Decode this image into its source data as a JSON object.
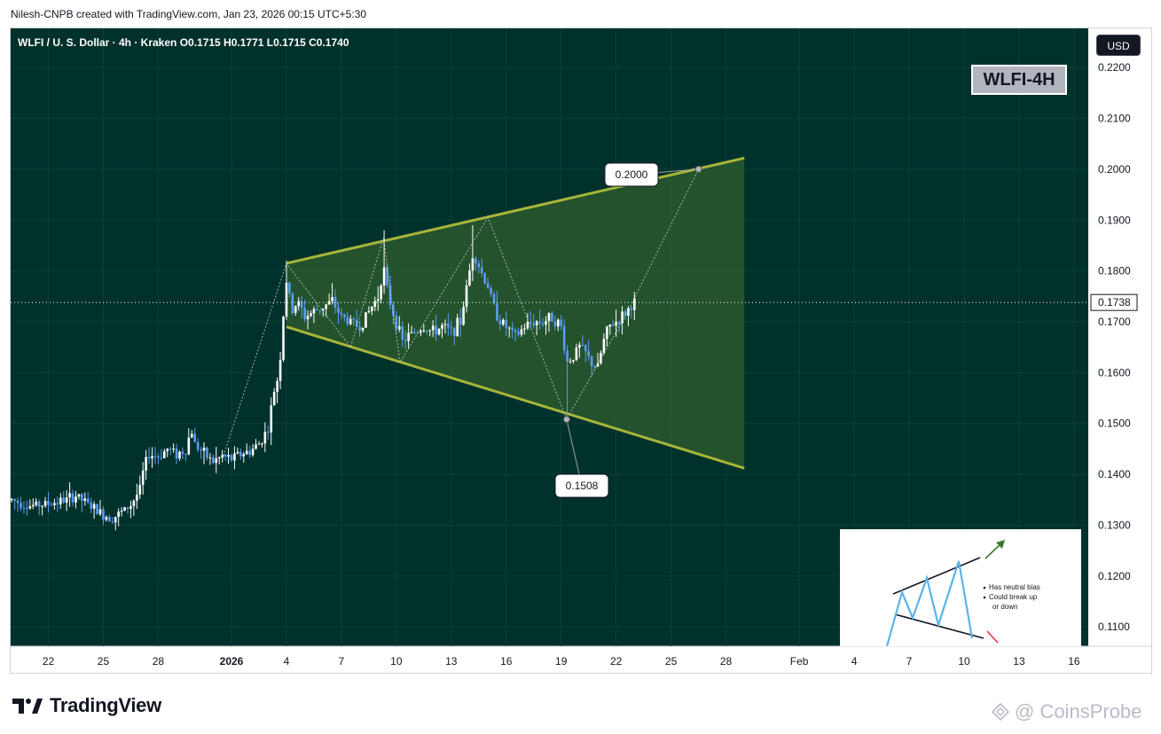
{
  "header": {
    "credit": "Nilesh-CNPB created with TradingView.com, Jan 23, 2026 00:15 UTC+5:30"
  },
  "legend": {
    "symbol_line": "WLFI / U. S. Dollar · 4h · Kraken  O0.1715  H0.1771  L0.1715  C0.1740"
  },
  "currency": "USD",
  "tag": "WLFI-4H",
  "brand": "TradingView",
  "watermark": "CoinsProbe",
  "colors": {
    "background": "#01312b",
    "up": "#ffffff",
    "down": "#5b9cf6",
    "pattern": "#a7b53a",
    "pattern_fill": "#2f5e2e",
    "grid": "#0f4037",
    "inset_line": "#5ab4e8"
  },
  "chart_data": {
    "type": "candlestick",
    "title": "WLFI / U. S. Dollar · 4h · Kraken",
    "ylim": [
      0.1062,
      0.2277
    ],
    "y_ticks": [
      "0.2200",
      "0.2100",
      "0.2000",
      "0.1900",
      "0.1800",
      "0.1700",
      "0.1600",
      "0.1500",
      "0.1400",
      "0.1300",
      "0.1200",
      "0.1100"
    ],
    "x_ticks": [
      "22",
      "25",
      "28",
      "2026",
      "4",
      "7",
      "10",
      "13",
      "16",
      "19",
      "22",
      "25",
      "28",
      "Feb",
      "4",
      "7",
      "10",
      "13",
      "16"
    ],
    "x_tick_days": [
      -10,
      -7,
      -4,
      0,
      3,
      6,
      9,
      12,
      15,
      18,
      21,
      24,
      27,
      31,
      34,
      37,
      40,
      43,
      46
    ],
    "last_price": "0.1738",
    "price_path": [
      [
        -12,
        0.135
      ],
      [
        -11,
        0.1338
      ],
      [
        -10,
        0.1342
      ],
      [
        -9,
        0.135
      ],
      [
        -8.5,
        0.1358
      ],
      [
        -8,
        0.1345
      ],
      [
        -7,
        0.132
      ],
      [
        -6.5,
        0.1315
      ],
      [
        -6,
        0.1325
      ],
      [
        -5.5,
        0.134
      ],
      [
        -5,
        0.137
      ],
      [
        -4.8,
        0.141
      ],
      [
        -4.5,
        0.144
      ],
      [
        -4,
        0.1435
      ],
      [
        -3.5,
        0.145
      ],
      [
        -3,
        0.144
      ],
      [
        -2.5,
        0.1448
      ],
      [
        -2.2,
        0.149
      ],
      [
        -2,
        0.146
      ],
      [
        -1.5,
        0.144
      ],
      [
        -1,
        0.1425
      ],
      [
        -0.5,
        0.1435
      ],
      [
        0,
        0.143
      ],
      [
        0.5,
        0.144
      ],
      [
        1,
        0.1445
      ],
      [
        1.5,
        0.146
      ],
      [
        2,
        0.149
      ],
      [
        2.3,
        0.156
      ],
      [
        2.6,
        0.16
      ],
      [
        2.8,
        0.17
      ],
      [
        3,
        0.178
      ],
      [
        3.3,
        0.172
      ],
      [
        3.6,
        0.174
      ],
      [
        4,
        0.171
      ],
      [
        4.5,
        0.172
      ],
      [
        5,
        0.173
      ],
      [
        5.5,
        0.174
      ],
      [
        6,
        0.171
      ],
      [
        6.5,
        0.17
      ],
      [
        7,
        0.169
      ],
      [
        7.5,
        0.172
      ],
      [
        8,
        0.175
      ],
      [
        8.3,
        0.181
      ],
      [
        8.5,
        0.176
      ],
      [
        8.8,
        0.172
      ],
      [
        9,
        0.17
      ],
      [
        9.3,
        0.166
      ],
      [
        9.6,
        0.167
      ],
      [
        10,
        0.168
      ],
      [
        10.5,
        0.169
      ],
      [
        11,
        0.168
      ],
      [
        11.5,
        0.169
      ],
      [
        12,
        0.168
      ],
      [
        12.5,
        0.17
      ],
      [
        12.8,
        0.176
      ],
      [
        13.2,
        0.184
      ],
      [
        13.6,
        0.18
      ],
      [
        14,
        0.177
      ],
      [
        14.3,
        0.173
      ],
      [
        14.7,
        0.17
      ],
      [
        15,
        0.169
      ],
      [
        15.5,
        0.167
      ],
      [
        16,
        0.169
      ],
      [
        16.5,
        0.17
      ],
      [
        17,
        0.17
      ],
      [
        17.5,
        0.171
      ],
      [
        18,
        0.169
      ],
      [
        18.3,
        0.162
      ],
      [
        18.6,
        0.163
      ],
      [
        19,
        0.165
      ],
      [
        19.3,
        0.164
      ],
      [
        19.6,
        0.162
      ],
      [
        20,
        0.161
      ],
      [
        20.3,
        0.166
      ],
      [
        20.6,
        0.169
      ],
      [
        21,
        0.17
      ],
      [
        21.3,
        0.171
      ],
      [
        21.7,
        0.1725
      ],
      [
        22,
        0.174
      ]
    ],
    "spikes": [
      [
        3,
        0.182
      ],
      [
        8.3,
        0.188
      ],
      [
        13.2,
        0.189
      ],
      [
        18.3,
        0.1508
      ]
    ],
    "pattern": {
      "name": "broadening wedge",
      "upper_line": [
        [
          3,
          0.1815
        ],
        [
          28,
          0.2022
        ]
      ],
      "lower_line": [
        [
          3,
          0.169
        ],
        [
          28,
          0.1412
        ]
      ],
      "fill_right_day": 28
    },
    "zigzag": [
      [
        -0.5,
        0.143
      ],
      [
        3,
        0.1815
      ],
      [
        6.5,
        0.165
      ],
      [
        8.3,
        0.1865
      ],
      [
        9.2,
        0.162
      ],
      [
        14,
        0.1905
      ],
      [
        18.3,
        0.1508
      ],
      [
        21.7,
        0.1725
      ],
      [
        25.5,
        0.2
      ]
    ],
    "annotations": [
      {
        "label": "0.2000",
        "day": 25.5,
        "price": 0.2,
        "box_x": 700,
        "box_y": 165
      },
      {
        "label": "0.1508",
        "day": 18.3,
        "price": 0.1508,
        "box_x": 644,
        "box_y": 516
      }
    ]
  },
  "inset": {
    "bullets": [
      "Has neutral bias",
      "Could break up",
      "or down"
    ]
  }
}
